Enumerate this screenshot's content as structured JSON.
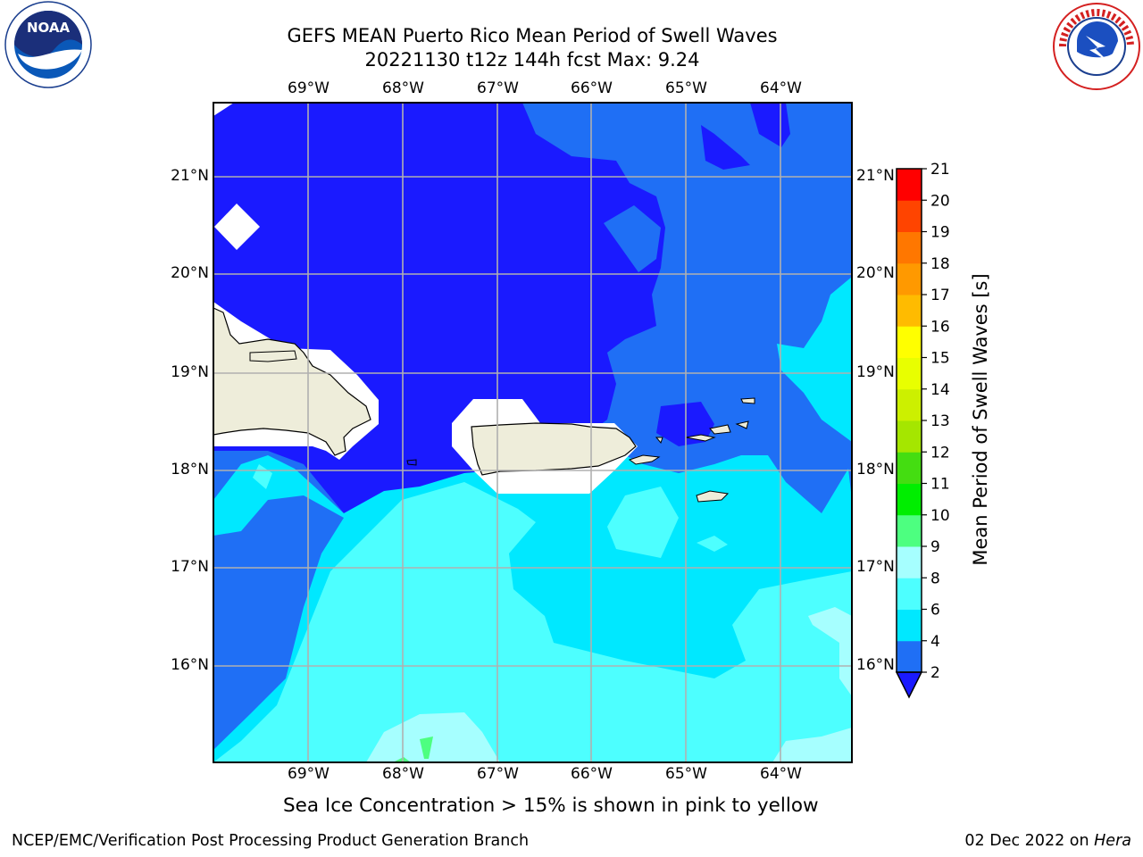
{
  "header": {
    "title_line1": "GEFS MEAN Puerto Rico Mean Period of Swell Waves",
    "title_line2": "20221130 t12z 144h fcst   Max: 9.24"
  },
  "logos": {
    "left": {
      "name": "NOAA",
      "ring_text": "NATIONAL OCEANIC AND ATMOSPHERIC ADMINISTRATION · U.S. DEPARTMENT OF COMMERCE"
    },
    "right": {
      "name": "NATIONAL WEATHER SERVICE"
    }
  },
  "map": {
    "longitude_labels": [
      "69°W",
      "68°W",
      "67°W",
      "66°W",
      "65°W",
      "64°W"
    ],
    "latitude_labels": [
      "21°N",
      "20°N",
      "19°N",
      "18°N",
      "17°N",
      "16°N"
    ],
    "colors": {
      "deep_blue": "#1a1aff",
      "blue": "#1f6ff5",
      "cyan": "#00e8ff",
      "light_cyan": "#4dffff",
      "pale_cyan": "#a6ffff",
      "green": "#4dff80",
      "land": "#eeedda",
      "grid": "#b0b0b0"
    }
  },
  "colorbar": {
    "label": "Mean Period of Swell Waves [s]",
    "ticks": [
      "2",
      "4",
      "6",
      "8",
      "9",
      "10",
      "11",
      "12",
      "13",
      "14",
      "15",
      "16",
      "17",
      "18",
      "19",
      "20",
      "21"
    ],
    "bins": [
      {
        "from": 2,
        "to": 4,
        "color": "#1f6ff5"
      },
      {
        "from": 4,
        "to": 6,
        "color": "#00e8ff"
      },
      {
        "from": 6,
        "to": 8,
        "color": "#4dffff"
      },
      {
        "from": 8,
        "to": 9,
        "color": "#a6ffff"
      },
      {
        "from": 9,
        "to": 10,
        "color": "#4dff80"
      },
      {
        "from": 10,
        "to": 11,
        "color": "#00ee00"
      },
      {
        "from": 11,
        "to": 12,
        "color": "#44dd11"
      },
      {
        "from": 12,
        "to": 13,
        "color": "#a5e600"
      },
      {
        "from": 13,
        "to": 14,
        "color": "#ccf000"
      },
      {
        "from": 14,
        "to": 15,
        "color": "#e8ff00"
      },
      {
        "from": 15,
        "to": 16,
        "color": "#ffff00"
      },
      {
        "from": 16,
        "to": 17,
        "color": "#ffbb00"
      },
      {
        "from": 17,
        "to": 18,
        "color": "#ff9900"
      },
      {
        "from": 18,
        "to": 19,
        "color": "#ff7700"
      },
      {
        "from": 19,
        "to": 20,
        "color": "#ff4400"
      },
      {
        "from": 20,
        "to": 21,
        "color": "#ff0000"
      }
    ],
    "under_color": "#1a1aff"
  },
  "caption": "Sea Ice Concentration > 15% is shown in pink to yellow",
  "footer": {
    "left": "NCEP/EMC/Verification Post Processing Product Generation Branch",
    "right_date": "02 Dec 2022 on ",
    "right_host": "Hera"
  }
}
